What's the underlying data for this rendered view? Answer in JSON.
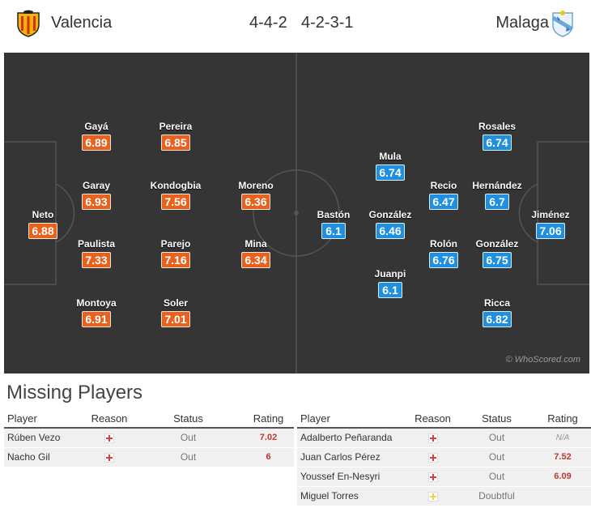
{
  "match": {
    "home": {
      "name": "Valencia",
      "formation": "4-4-2",
      "crest_color": "#f39c12"
    },
    "away": {
      "name": "Malaga",
      "formation": "4-2-3-1",
      "crest_color": "#6ba7d8"
    }
  },
  "watermark": "© WhoScored.com",
  "colors": {
    "home_rating": "#e8621d",
    "away_rating": "#1f8fe0",
    "pitch": "#353535",
    "injury": "#e53b3b",
    "doubtful": "#f5d33a"
  },
  "lineups": {
    "home": [
      {
        "name": "Neto",
        "rating": "6.88"
      },
      {
        "name": "Gayá",
        "rating": "6.89"
      },
      {
        "name": "Garay",
        "rating": "6.93"
      },
      {
        "name": "Paulista",
        "rating": "7.33"
      },
      {
        "name": "Montoya",
        "rating": "6.91"
      },
      {
        "name": "Pereira",
        "rating": "6.85"
      },
      {
        "name": "Kondogbia",
        "rating": "7.56"
      },
      {
        "name": "Parejo",
        "rating": "7.16"
      },
      {
        "name": "Soler",
        "rating": "7.01"
      },
      {
        "name": "Moreno",
        "rating": "6.36"
      },
      {
        "name": "Mina",
        "rating": "6.34"
      }
    ],
    "away": [
      {
        "name": "Bastón",
        "rating": "6.1"
      },
      {
        "name": "Mula",
        "rating": "6.74"
      },
      {
        "name": "González",
        "rating": "6.46"
      },
      {
        "name": "Juanpi",
        "rating": "6.1"
      },
      {
        "name": "Recio",
        "rating": "6.47"
      },
      {
        "name": "Rolón",
        "rating": "6.76"
      },
      {
        "name": "Rosales",
        "rating": "6.74"
      },
      {
        "name": "Hernández",
        "rating": "6.7"
      },
      {
        "name": "González",
        "rating": "6.75"
      },
      {
        "name": "Ricca",
        "rating": "6.82"
      },
      {
        "name": "Jiménez",
        "rating": "7.06"
      }
    ]
  },
  "missing": {
    "title": "Missing Players",
    "headers": {
      "player": "Player",
      "reason": "Reason",
      "status": "Status",
      "rating": "Rating"
    },
    "home": [
      {
        "player": "Rúben Vezo",
        "reason": "injury",
        "status": "Out",
        "rating": "7.02"
      },
      {
        "player": "Nacho Gil",
        "reason": "injury",
        "status": "Out",
        "rating": "6"
      }
    ],
    "away": [
      {
        "player": "Adalberto Peñaranda",
        "reason": "injury",
        "status": "Out",
        "rating": "N/A"
      },
      {
        "player": "Juan Carlos Pérez",
        "reason": "injury",
        "status": "Out",
        "rating": "7.52"
      },
      {
        "player": "Youssef En-Nesyri",
        "reason": "injury",
        "status": "Out",
        "rating": "6.09"
      },
      {
        "player": "Miguel Torres",
        "reason": "doubtful",
        "status": "Doubtful",
        "rating": ""
      }
    ]
  }
}
